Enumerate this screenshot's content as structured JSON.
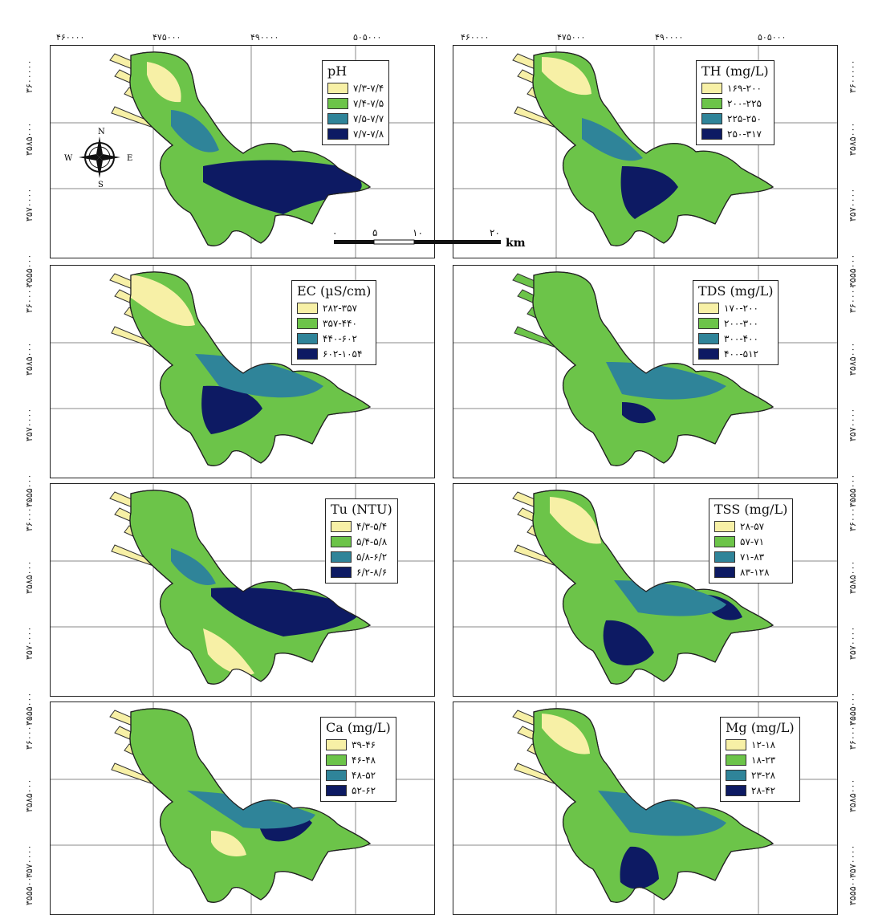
{
  "top_axis_labels": [
    "۴۶۰۰۰۰",
    "۴۷۵۰۰۰",
    "۴۹۰۰۰۰",
    "۵۰۵۰۰۰"
  ],
  "side_axis_labels": [
    "۳۶۰۰۰۰۰",
    "۳۵۸۵۰۰۰",
    "۳۵۷۰۰۰۰",
    "۳۵۵۵۰۰۰"
  ],
  "compass": {
    "n": "N",
    "s": "S",
    "e": "E",
    "w": "W"
  },
  "scale_bar": {
    "labels": [
      "۰",
      "۵",
      "۱۰",
      "۲۰"
    ],
    "unit": "km"
  },
  "colors": {
    "class1": "#f7f0a6",
    "class2": "#6cc449",
    "class3": "#2f8499",
    "class4": "#0d1a63"
  },
  "panels": [
    {
      "title": "pH",
      "classes": [
        "۷/۳-۷/۴",
        "۷/۴-۷/۵",
        "۷/۵-۷/۷",
        "۷/۷-۷/۸"
      ]
    },
    {
      "title": "TH (mg/L)",
      "classes": [
        "۱۶۹-۲۰۰",
        "۲۰۰-۲۲۵",
        "۲۲۵-۲۵۰",
        "۲۵۰-۳۱۷"
      ]
    },
    {
      "title": "EC (µS/cm)",
      "classes": [
        "۲۸۲-۳۵۷",
        "۳۵۷-۴۴۰",
        "۴۴۰-۶۰۲",
        "۶۰۲-۱۰۵۴"
      ]
    },
    {
      "title": "TDS (mg/L)",
      "classes": [
        "۱۷۰-۲۰۰",
        "۲۰۰-۳۰۰",
        "۳۰۰-۴۰۰",
        "۴۰۰-۵۱۲"
      ]
    },
    {
      "title": "Tu (NTU)",
      "classes": [
        "۴/۳-۵/۴",
        "۵/۴-۵/۸",
        "۵/۸-۶/۲",
        "۶/۲-۸/۶"
      ]
    },
    {
      "title": "TSS (mg/L)",
      "classes": [
        "۲۸-۵۷",
        "۵۷-۷۱",
        "۷۱-۸۳",
        "۸۳-۱۲۸"
      ]
    },
    {
      "title": "Ca (mg/L)",
      "classes": [
        "۳۹-۴۶",
        "۴۶-۴۸",
        "۴۸-۵۲",
        "۵۲-۶۲"
      ]
    },
    {
      "title": "Mg (mg/L)",
      "classes": [
        "۱۲-۱۸",
        "۱۸-۲۳",
        "۲۳-۲۸",
        "۲۸-۴۲"
      ]
    }
  ]
}
